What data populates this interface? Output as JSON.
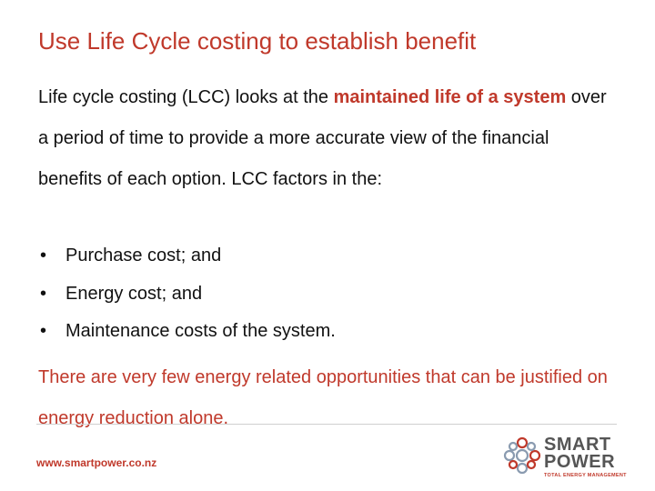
{
  "title": "Use Life Cycle costing to establish benefit",
  "paragraph": {
    "before": "Life cycle costing (LCC) looks at the ",
    "highlight": "maintained life of a system",
    "after": " over a period of time to provide a more accurate view of the financial benefits of each option. LCC factors in the:"
  },
  "bullets": [
    "Purchase cost; and",
    "Energy cost; and",
    "Maintenance costs of the system."
  ],
  "closing": "There are very few energy related opportunities that can be justified on energy reduction alone.",
  "footer": {
    "url": "www.smartpower.co.nz",
    "logo": {
      "line1": "SMART",
      "line2": "POWER",
      "tagline": "TOTAL ENERGY MANAGEMENT"
    }
  }
}
